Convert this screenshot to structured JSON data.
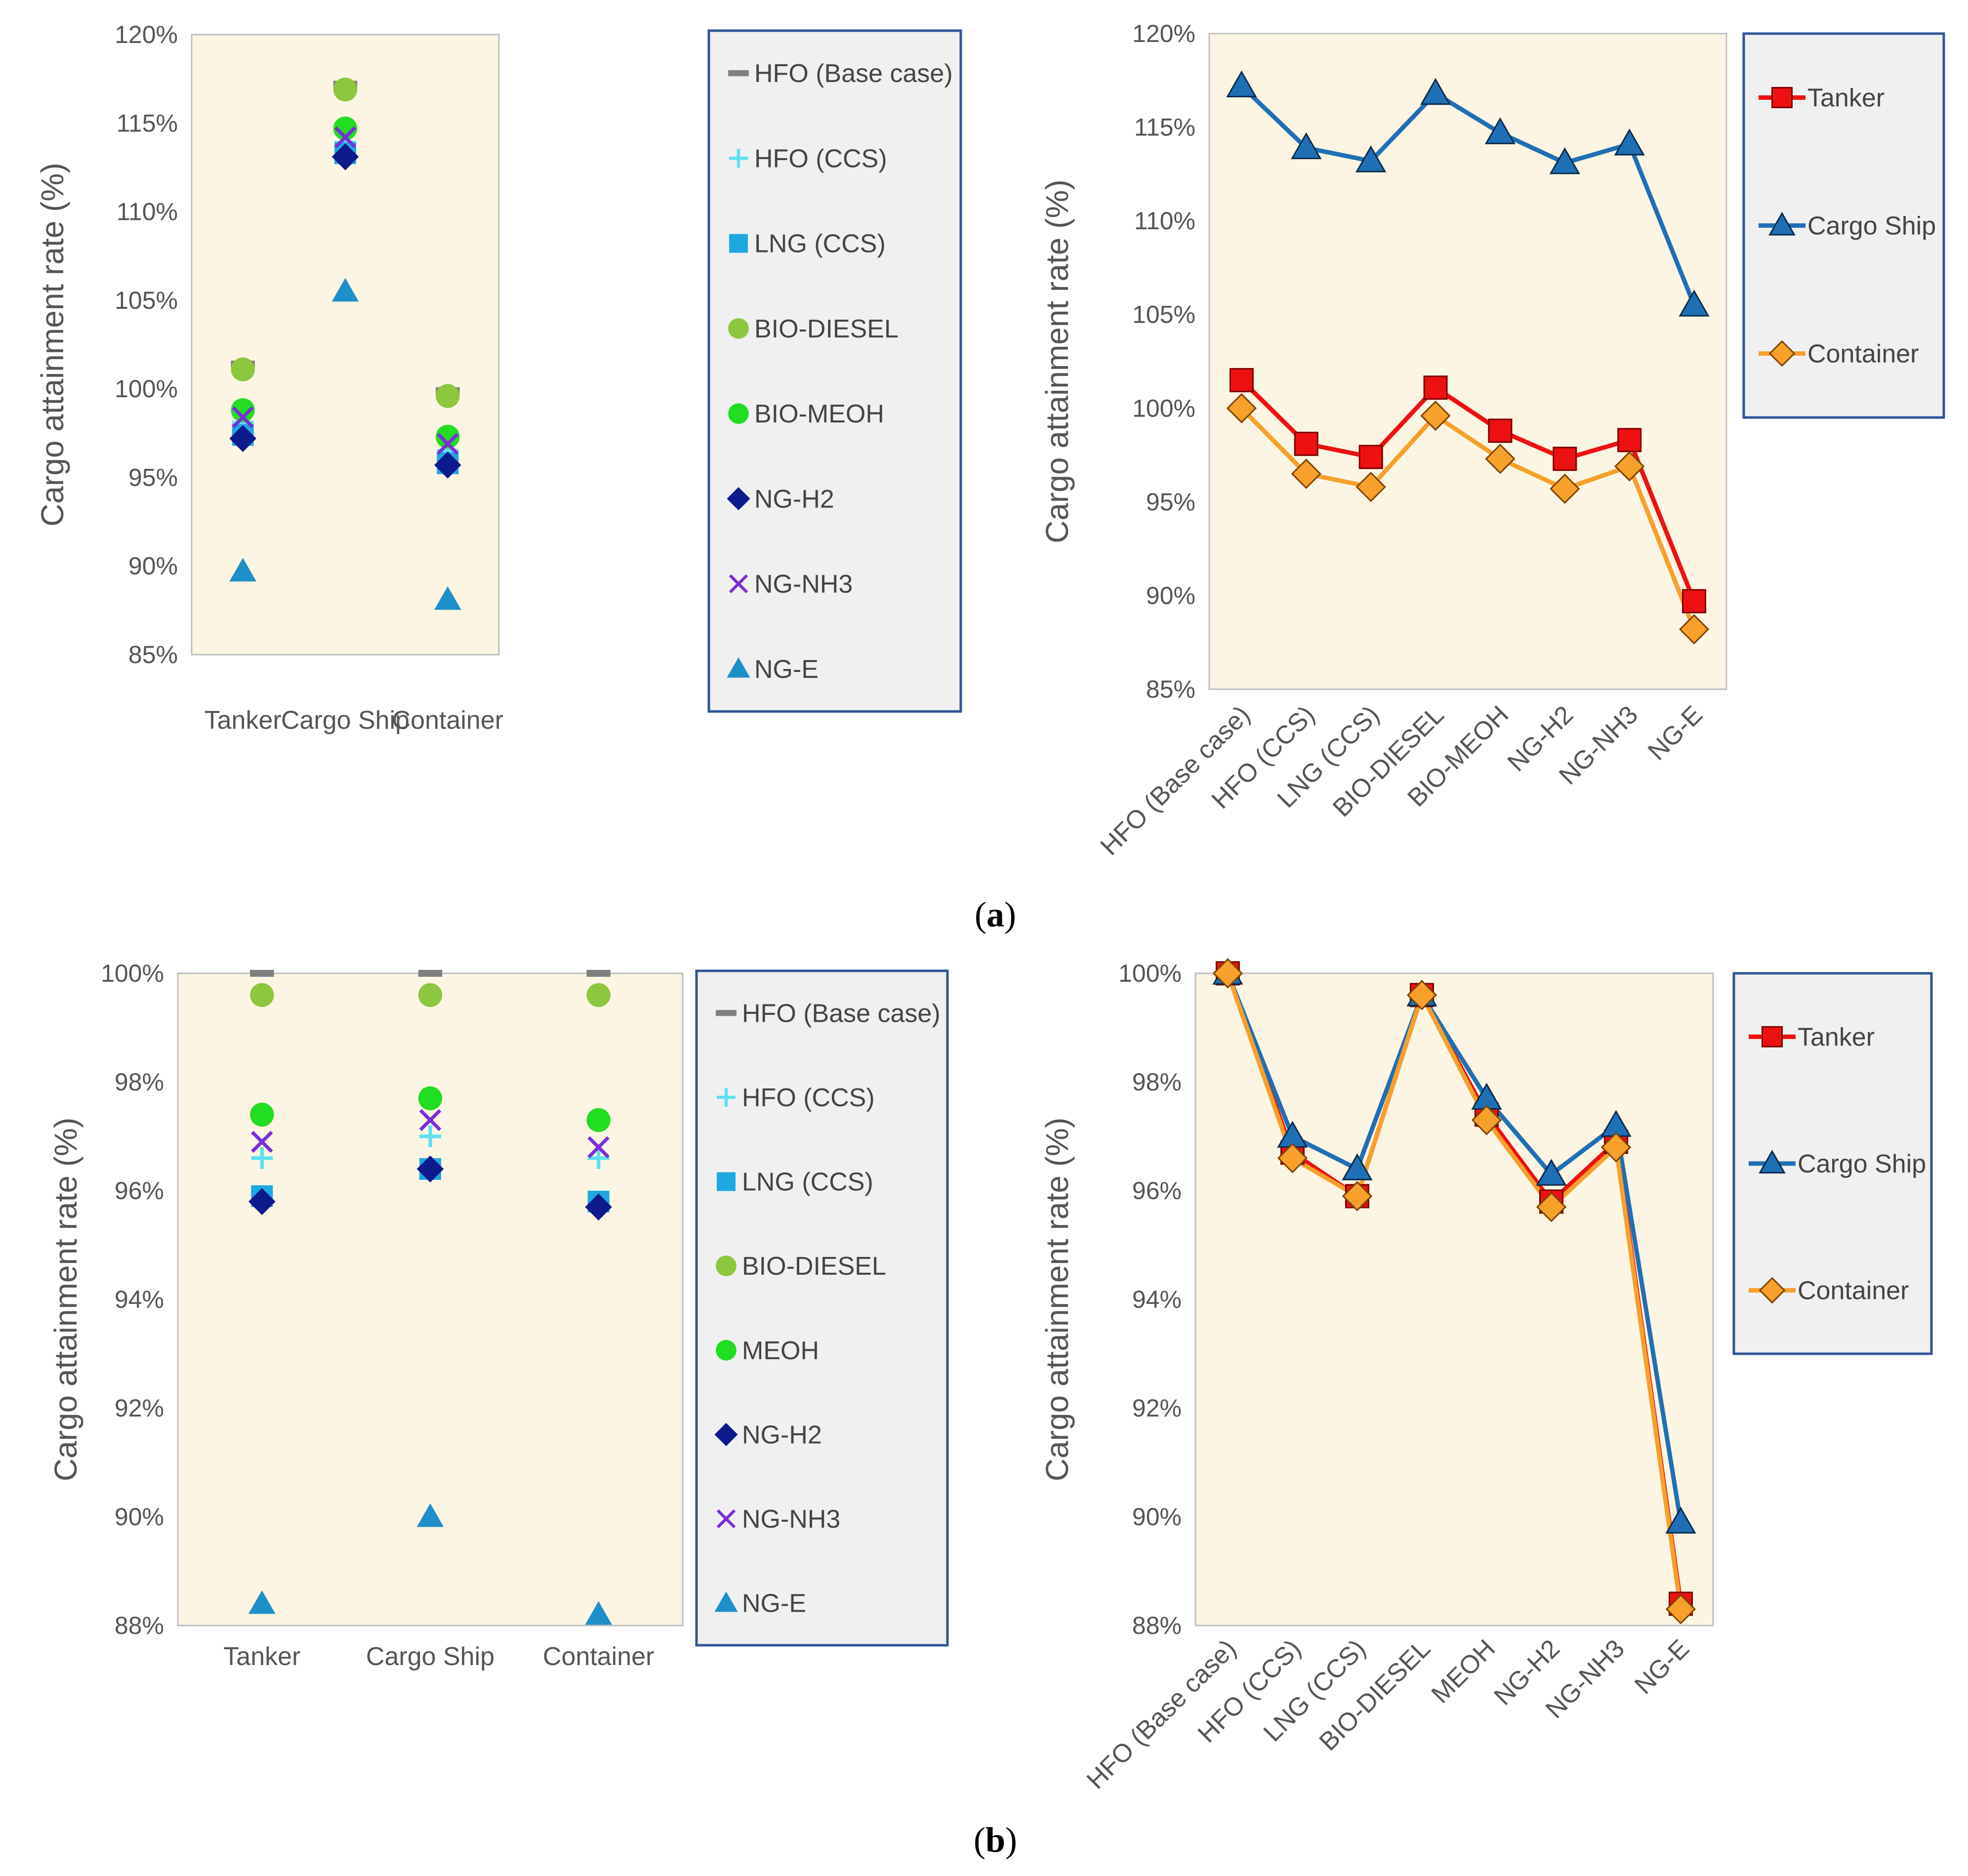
{
  "chart_data": [
    {
      "id": "a-scatter",
      "type": "scatter",
      "ylabel": "Cargo attainment rate (%)",
      "ylim": [
        85,
        120
      ],
      "ytick_step": 5,
      "ytick_labels": [
        "85%",
        "90%",
        "95%",
        "100%",
        "105%",
        "110%",
        "115%",
        "120%"
      ],
      "categories": [
        "Tanker",
        "Cargo Ship",
        "Container"
      ],
      "legend_position": "right",
      "series": [
        {
          "name": "HFO (Base case)",
          "marker": "dash",
          "color": "#7f7f7f",
          "values": [
            101.4,
            117.2,
            99.9
          ]
        },
        {
          "name": "HFO (CCS)",
          "marker": "plus",
          "color": "#5ee0f0",
          "values": [
            98.1,
            113.9,
            96.5
          ]
        },
        {
          "name": "LNG (CCS)",
          "marker": "square",
          "color": "#1fa8e0",
          "values": [
            97.4,
            113.3,
            95.8
          ]
        },
        {
          "name": "BIO-DIESEL",
          "marker": "circle",
          "color": "#8dc63f",
          "values": [
            101.1,
            116.9,
            99.6
          ]
        },
        {
          "name": "BIO-MEOH",
          "marker": "circle",
          "color": "#22dd22",
          "values": [
            98.8,
            114.7,
            97.3
          ]
        },
        {
          "name": "NG-H2",
          "marker": "diamond",
          "color": "#0d1a8c",
          "values": [
            97.2,
            113.1,
            95.7
          ]
        },
        {
          "name": "NG-NH3",
          "marker": "x",
          "color": "#7b2fd6",
          "values": [
            98.4,
            114.2,
            96.9
          ]
        },
        {
          "name": "NG-E",
          "marker": "triangle",
          "color": "#1e8fc8",
          "values": [
            89.7,
            105.5,
            88.1
          ]
        }
      ]
    },
    {
      "id": "a-line",
      "type": "line",
      "ylabel": "Cargo attainment rate (%)",
      "ylim": [
        85,
        120
      ],
      "ytick_step": 5,
      "ytick_labels": [
        "85%",
        "90%",
        "95%",
        "100%",
        "105%",
        "110%",
        "115%",
        "120%"
      ],
      "categories": [
        "HFO (Base case)",
        "HFO (CCS)",
        "LNG (CCS)",
        "BIO-DIESEL",
        "BIO-MEOH",
        "NG-H2",
        "NG-NH3",
        "NG-E"
      ],
      "legend_position": "right",
      "series": [
        {
          "name": "Tanker",
          "marker": "square",
          "color": "#ee1111",
          "edge": "#7a0000",
          "values": [
            101.5,
            98.1,
            97.4,
            101.1,
            98.8,
            97.3,
            98.3,
            89.7
          ]
        },
        {
          "name": "Cargo Ship",
          "marker": "triangle",
          "color": "#1f6fb5",
          "edge": "#0b2a4a",
          "values": [
            117.2,
            113.9,
            113.2,
            116.8,
            114.7,
            113.1,
            114.1,
            105.5
          ]
        },
        {
          "name": "Container",
          "marker": "diamond",
          "color": "#f7a02c",
          "edge": "#7a4200",
          "values": [
            100.0,
            96.5,
            95.8,
            99.6,
            97.3,
            95.7,
            96.9,
            88.2
          ]
        }
      ]
    },
    {
      "id": "b-scatter",
      "type": "scatter",
      "ylabel": "Cargo attainment rate (%)",
      "ylim": [
        88,
        100
      ],
      "ytick_step": 2,
      "ytick_labels": [
        "88%",
        "90%",
        "92%",
        "94%",
        "96%",
        "98%",
        "100%"
      ],
      "categories": [
        "Tanker",
        "Cargo Ship",
        "Container"
      ],
      "legend_position": "right",
      "series": [
        {
          "name": "HFO (Base case)",
          "marker": "dash",
          "color": "#7f7f7f",
          "values": [
            100.0,
            100.0,
            100.0
          ]
        },
        {
          "name": "HFO (CCS)",
          "marker": "plus",
          "color": "#5ee0f0",
          "values": [
            96.6,
            97.0,
            96.6
          ]
        },
        {
          "name": "LNG (CCS)",
          "marker": "square",
          "color": "#1fa8e0",
          "values": [
            95.9,
            96.4,
            95.8
          ]
        },
        {
          "name": "BIO-DIESEL",
          "marker": "circle",
          "color": "#8dc63f",
          "values": [
            99.6,
            99.6,
            99.6
          ]
        },
        {
          "name": "MEOH",
          "marker": "circle",
          "color": "#22dd22",
          "values": [
            97.4,
            97.7,
            97.3
          ]
        },
        {
          "name": "NG-H2",
          "marker": "diamond",
          "color": "#0d1a8c",
          "values": [
            95.8,
            96.4,
            95.7
          ]
        },
        {
          "name": "NG-NH3",
          "marker": "x",
          "color": "#7b2fd6",
          "values": [
            96.9,
            97.3,
            96.8
          ]
        },
        {
          "name": "NG-E",
          "marker": "triangle",
          "color": "#1e8fc8",
          "values": [
            88.4,
            90.0,
            88.2
          ]
        }
      ]
    },
    {
      "id": "b-line",
      "type": "line",
      "ylabel": "Cargo attainment rate (%)",
      "ylim": [
        88,
        100
      ],
      "ytick_step": 2,
      "ytick_labels": [
        "88%",
        "90%",
        "92%",
        "94%",
        "96%",
        "98%",
        "100%"
      ],
      "categories": [
        "HFO (Base case)",
        "HFO (CCS)",
        "LNG (CCS)",
        "BIO-DIESEL",
        "MEOH",
        "NG-H2",
        "NG-NH3",
        "NG-E"
      ],
      "legend_position": "right",
      "series": [
        {
          "name": "Tanker",
          "marker": "square",
          "color": "#ee1111",
          "edge": "#7a0000",
          "values": [
            100.0,
            96.7,
            95.9,
            99.6,
            97.4,
            95.8,
            96.9,
            88.4
          ]
        },
        {
          "name": "Cargo Ship",
          "marker": "triangle",
          "color": "#1f6fb5",
          "edge": "#0b2a4a",
          "values": [
            100.0,
            97.0,
            96.4,
            99.6,
            97.7,
            96.3,
            97.2,
            89.9
          ]
        },
        {
          "name": "Container",
          "marker": "diamond",
          "color": "#f7a02c",
          "edge": "#7a4200",
          "values": [
            100.0,
            96.6,
            95.9,
            99.6,
            97.3,
            95.7,
            96.8,
            88.3
          ]
        }
      ]
    }
  ],
  "captions": {
    "a": {
      "open": "(",
      "letter": "a",
      "close": ")"
    },
    "b": {
      "open": "(",
      "letter": "b",
      "close": ")"
    }
  },
  "colors": {
    "plot_background": "#fdf5e3",
    "legend_background": "#f0f0f0",
    "legend_border": "#2f5597",
    "plot_border": "#bfbfbf"
  }
}
